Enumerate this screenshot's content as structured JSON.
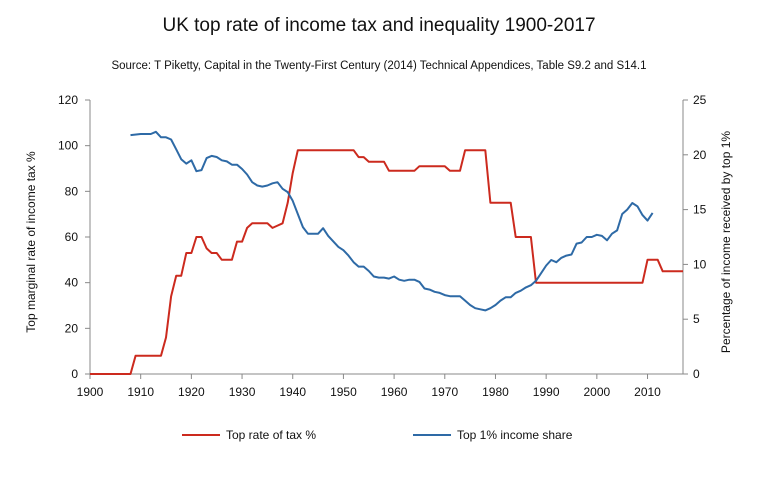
{
  "chart_data": {
    "type": "line",
    "title": "UK top rate of income tax and inequality 1900-2017",
    "subtitle": "Source: T Piketty, Capital in the Twenty-First Century (2014) Technical Appendices, Table S9.2 and S14.1",
    "xlabel": "",
    "ylabel_left": "Top marginal rate of income tax %",
    "ylabel_right": "Percentage of income received by top 1%",
    "xlim": [
      1900,
      2017
    ],
    "ylim_left": [
      0,
      120
    ],
    "ylim_right": [
      0,
      25
    ],
    "x_ticks": [
      1900,
      1910,
      1920,
      1930,
      1940,
      1950,
      1960,
      1970,
      1980,
      1990,
      2000,
      2010
    ],
    "y_left_ticks": [
      0,
      20,
      40,
      60,
      80,
      100,
      120
    ],
    "y_right_ticks": [
      0,
      5,
      10,
      15,
      20,
      25
    ],
    "grid": false,
    "legend_position": "bottom",
    "series": [
      {
        "name": "Top rate of tax %",
        "axis": "left",
        "color": "#cc2a1e",
        "points": [
          [
            1900,
            0
          ],
          [
            1908,
            0
          ],
          [
            1909,
            8
          ],
          [
            1914,
            8
          ],
          [
            1915,
            16
          ],
          [
            1916,
            34
          ],
          [
            1917,
            43
          ],
          [
            1918,
            43
          ],
          [
            1919,
            53
          ],
          [
            1920,
            53
          ],
          [
            1921,
            60
          ],
          [
            1922,
            60
          ],
          [
            1923,
            55
          ],
          [
            1924,
            53
          ],
          [
            1925,
            53
          ],
          [
            1926,
            50
          ],
          [
            1928,
            50
          ],
          [
            1929,
            58
          ],
          [
            1930,
            58
          ],
          [
            1931,
            64
          ],
          [
            1932,
            66
          ],
          [
            1935,
            66
          ],
          [
            1936,
            64
          ],
          [
            1937,
            65
          ],
          [
            1938,
            66
          ],
          [
            1939,
            75
          ],
          [
            1940,
            88
          ],
          [
            1941,
            98
          ],
          [
            1952,
            98
          ],
          [
            1953,
            95
          ],
          [
            1954,
            95
          ],
          [
            1955,
            93
          ],
          [
            1958,
            93
          ],
          [
            1959,
            89
          ],
          [
            1964,
            89
          ],
          [
            1965,
            91
          ],
          [
            1970,
            91
          ],
          [
            1971,
            89
          ],
          [
            1973,
            89
          ],
          [
            1974,
            98
          ],
          [
            1978,
            98
          ],
          [
            1979,
            75
          ],
          [
            1983,
            75
          ],
          [
            1984,
            60
          ],
          [
            1987,
            60
          ],
          [
            1988,
            40
          ],
          [
            2009,
            40
          ],
          [
            2010,
            50
          ],
          [
            2012,
            50
          ],
          [
            2013,
            45
          ],
          [
            2017,
            45
          ]
        ]
      },
      {
        "name": "Top 1% income share",
        "axis": "right",
        "color": "#2e6aa6",
        "points": [
          [
            1908,
            21.8
          ],
          [
            1910,
            21.9
          ],
          [
            1912,
            21.9
          ],
          [
            1913,
            22.1
          ],
          [
            1914,
            21.6
          ],
          [
            1915,
            21.6
          ],
          [
            1916,
            21.4
          ],
          [
            1917,
            20.5
          ],
          [
            1918,
            19.6
          ],
          [
            1919,
            19.2
          ],
          [
            1920,
            19.5
          ],
          [
            1921,
            18.5
          ],
          [
            1922,
            18.6
          ],
          [
            1923,
            19.7
          ],
          [
            1924,
            19.9
          ],
          [
            1925,
            19.8
          ],
          [
            1926,
            19.5
          ],
          [
            1927,
            19.4
          ],
          [
            1928,
            19.1
          ],
          [
            1929,
            19.1
          ],
          [
            1930,
            18.7
          ],
          [
            1931,
            18.2
          ],
          [
            1932,
            17.5
          ],
          [
            1933,
            17.2
          ],
          [
            1934,
            17.1
          ],
          [
            1935,
            17.2
          ],
          [
            1936,
            17.4
          ],
          [
            1937,
            17.5
          ],
          [
            1938,
            16.9
          ],
          [
            1939,
            16.6
          ],
          [
            1940,
            15.8
          ],
          [
            1941,
            14.6
          ],
          [
            1942,
            13.4
          ],
          [
            1943,
            12.8
          ],
          [
            1944,
            12.8
          ],
          [
            1945,
            12.8
          ],
          [
            1946,
            13.3
          ],
          [
            1947,
            12.6
          ],
          [
            1948,
            12.1
          ],
          [
            1949,
            11.6
          ],
          [
            1950,
            11.3
          ],
          [
            1951,
            10.8
          ],
          [
            1952,
            10.2
          ],
          [
            1953,
            9.8
          ],
          [
            1954,
            9.8
          ],
          [
            1955,
            9.4
          ],
          [
            1956,
            8.9
          ],
          [
            1957,
            8.8
          ],
          [
            1958,
            8.8
          ],
          [
            1959,
            8.7
          ],
          [
            1960,
            8.9
          ],
          [
            1961,
            8.6
          ],
          [
            1962,
            8.5
          ],
          [
            1963,
            8.6
          ],
          [
            1964,
            8.6
          ],
          [
            1965,
            8.4
          ],
          [
            1966,
            7.8
          ],
          [
            1967,
            7.7
          ],
          [
            1968,
            7.5
          ],
          [
            1969,
            7.4
          ],
          [
            1970,
            7.2
          ],
          [
            1971,
            7.1
          ],
          [
            1972,
            7.1
          ],
          [
            1973,
            7.1
          ],
          [
            1974,
            6.7
          ],
          [
            1975,
            6.3
          ],
          [
            1976,
            6.0
          ],
          [
            1977,
            5.9
          ],
          [
            1978,
            5.8
          ],
          [
            1979,
            6.0
          ],
          [
            1980,
            6.3
          ],
          [
            1981,
            6.7
          ],
          [
            1982,
            7.0
          ],
          [
            1983,
            7.0
          ],
          [
            1984,
            7.4
          ],
          [
            1985,
            7.6
          ],
          [
            1986,
            7.9
          ],
          [
            1987,
            8.1
          ],
          [
            1988,
            8.5
          ],
          [
            1989,
            9.2
          ],
          [
            1990,
            9.9
          ],
          [
            1991,
            10.4
          ],
          [
            1992,
            10.2
          ],
          [
            1993,
            10.6
          ],
          [
            1994,
            10.8
          ],
          [
            1995,
            10.9
          ],
          [
            1996,
            11.9
          ],
          [
            1997,
            12.0
          ],
          [
            1998,
            12.5
          ],
          [
            1999,
            12.5
          ],
          [
            2000,
            12.7
          ],
          [
            2001,
            12.6
          ],
          [
            2002,
            12.2
          ],
          [
            2003,
            12.8
          ],
          [
            2004,
            13.1
          ],
          [
            2005,
            14.6
          ],
          [
            2006,
            15.0
          ],
          [
            2007,
            15.6
          ],
          [
            2008,
            15.3
          ],
          [
            2009,
            14.5
          ],
          [
            2010,
            14.0
          ],
          [
            2011,
            14.7
          ]
        ]
      }
    ]
  }
}
